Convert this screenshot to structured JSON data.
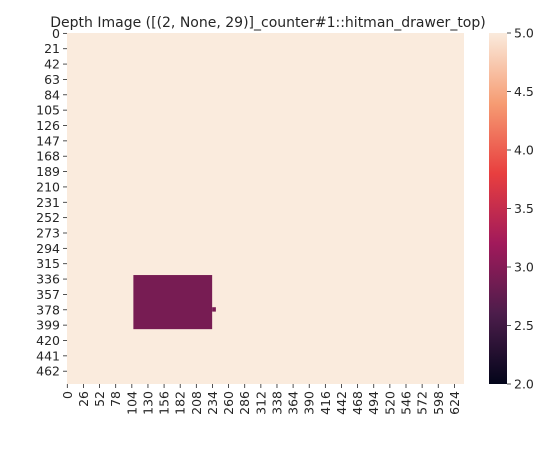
{
  "chart_data": {
    "type": "heatmap",
    "title": "Depth Image ([(2, None, 29)]_counter#1::hitman_drawer_top)",
    "xlabel": "",
    "ylabel": "",
    "image_width": 640,
    "image_height": 480,
    "background_value": 5.0,
    "regions": [
      {
        "x_range": [
          107,
          234
        ],
        "y_range": [
          331,
          405
        ],
        "value": 2.9
      },
      {
        "x_range": [
          234,
          240
        ],
        "y_range": [
          375,
          381
        ],
        "value": 2.9
      }
    ],
    "x_tick_labels": [
      "0",
      "26",
      "52",
      "78",
      "104",
      "130",
      "156",
      "182",
      "208",
      "234",
      "260",
      "286",
      "312",
      "338",
      "364",
      "390",
      "416",
      "442",
      "468",
      "494",
      "520",
      "546",
      "572",
      "598",
      "624"
    ],
    "y_tick_labels": [
      "0",
      "21",
      "42",
      "63",
      "84",
      "105",
      "126",
      "147",
      "168",
      "189",
      "210",
      "231",
      "252",
      "273",
      "294",
      "315",
      "336",
      "357",
      "378",
      "399",
      "420",
      "441",
      "462"
    ],
    "colorbar": {
      "min": 2.0,
      "max": 5.0,
      "tick_labels": [
        "2.0",
        "2.5",
        "3.0",
        "3.5",
        "4.0",
        "4.5",
        "5.0"
      ],
      "colormap": "rocket",
      "colormap_stops": [
        "#03051a",
        "#4c1d4b",
        "#a11a5b",
        "#e83f3f",
        "#f69c73",
        "#faebdd"
      ]
    },
    "grid": false
  }
}
